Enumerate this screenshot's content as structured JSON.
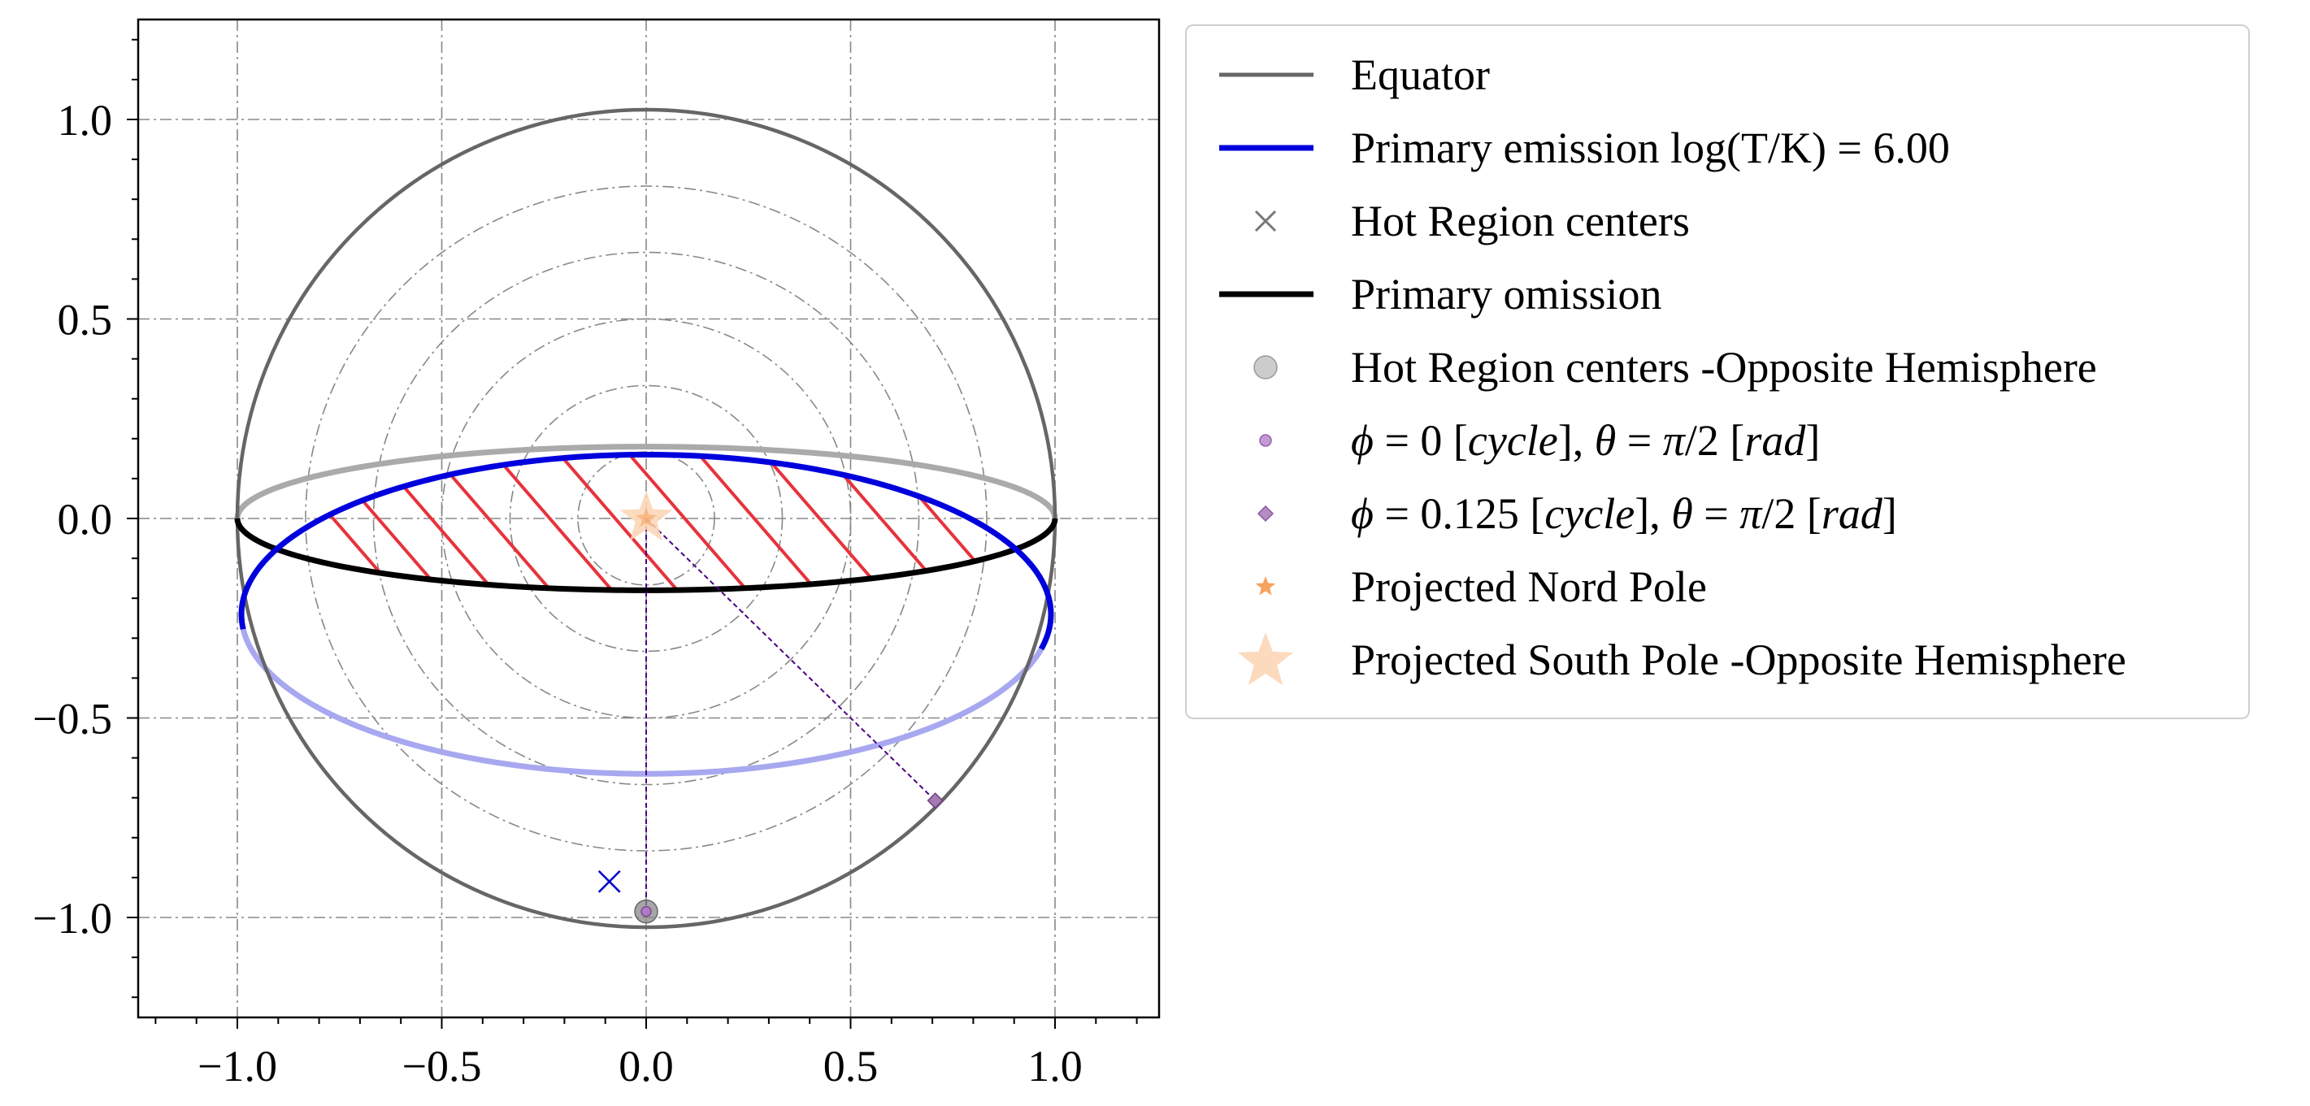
{
  "colors": {
    "equator": "#666666",
    "primary_emission": "#0000dd",
    "primary_emission_far": "#a8a8f0",
    "equator_far": "#aaaaaa",
    "omission": "#000000",
    "hatch": "#e8323c",
    "hot_region_x": "#0000cc",
    "opposite_center": "#888888",
    "phi0_marker": "#b07ac6",
    "phi0125_marker": "#a57bb3",
    "north_pole": "#f5a35f",
    "south_pole": "#fbd3b3",
    "dashed_path": "#4b0082",
    "grid": "#888888"
  },
  "chart_data": {
    "type": "scatter",
    "xlim": [
      -1.25,
      1.25
    ],
    "ylim": [
      -1.25,
      1.25
    ],
    "x_ticks": [
      -1.0,
      -0.5,
      0.0,
      0.5,
      1.0
    ],
    "y_ticks": [
      -1.0,
      -0.5,
      0.0,
      0.5,
      1.0
    ],
    "x_tick_labels": [
      "−1.0",
      "−0.5",
      "0.0",
      "0.5",
      "1.0"
    ],
    "y_tick_labels": [
      "−1.0",
      "−0.5",
      "0.0",
      "0.5",
      "1.0"
    ],
    "grid": true,
    "legend_position": "outside-right",
    "concentric_circle_radii": [
      0.167,
      0.333,
      0.5,
      0.667,
      0.833
    ],
    "equator": {
      "radius": 1.0
    },
    "primary_emission_ellipse": {
      "cx": 0.0,
      "cy": -0.24,
      "rx": 0.99,
      "ry": 0.4
    },
    "equator_projection_ellipse": {
      "cx": 0.0,
      "cy": 0.0,
      "rx": 1.0,
      "ry": 0.18
    },
    "hot_region_center": {
      "x": -0.09,
      "y": -0.91
    },
    "hot_region_center_opposite": {
      "x": 0.0,
      "y": -0.985
    },
    "phi0_point": {
      "x": 0.0,
      "y": -0.985
    },
    "phi0125_point": {
      "x": 0.707,
      "y": -0.707
    },
    "projected_north_pole": {
      "x": 0.0,
      "y": 0.0
    },
    "projected_south_pole": {
      "x": 0.0,
      "y": 0.0
    },
    "dashed_paths": [
      {
        "from": [
          0.0,
          0.0
        ],
        "to": [
          0.0,
          -0.985
        ]
      },
      {
        "from": [
          0.0,
          0.0
        ],
        "to": [
          0.707,
          -0.707
        ]
      }
    ],
    "hatch_x_starts": [
      -0.88,
      -0.77,
      -0.64,
      -0.5,
      -0.35,
      -0.19,
      -0.02,
      0.15,
      0.31,
      0.46,
      0.6
    ]
  },
  "legend": {
    "items": [
      {
        "label": "Equator"
      },
      {
        "label": "Primary emission log(T/K) = 6.00"
      },
      {
        "label": "Hot Region centers"
      },
      {
        "label": "Primary omission"
      },
      {
        "label": "Hot Region centers -Opposite Hemisphere"
      },
      {
        "label_parts": [
          "ϕ",
          " = 0 [",
          "cycle",
          "], ",
          "θ",
          " = ",
          "π",
          "/2 [",
          "rad",
          "]"
        ]
      },
      {
        "label_parts": [
          "ϕ",
          " = 0.125 [",
          "cycle",
          "], ",
          "θ",
          " = ",
          "π",
          "/2 [",
          "rad",
          "]"
        ]
      },
      {
        "label": "Projected Nord Pole"
      },
      {
        "label": "Projected South Pole  -Opposite Hemisphere"
      }
    ]
  }
}
